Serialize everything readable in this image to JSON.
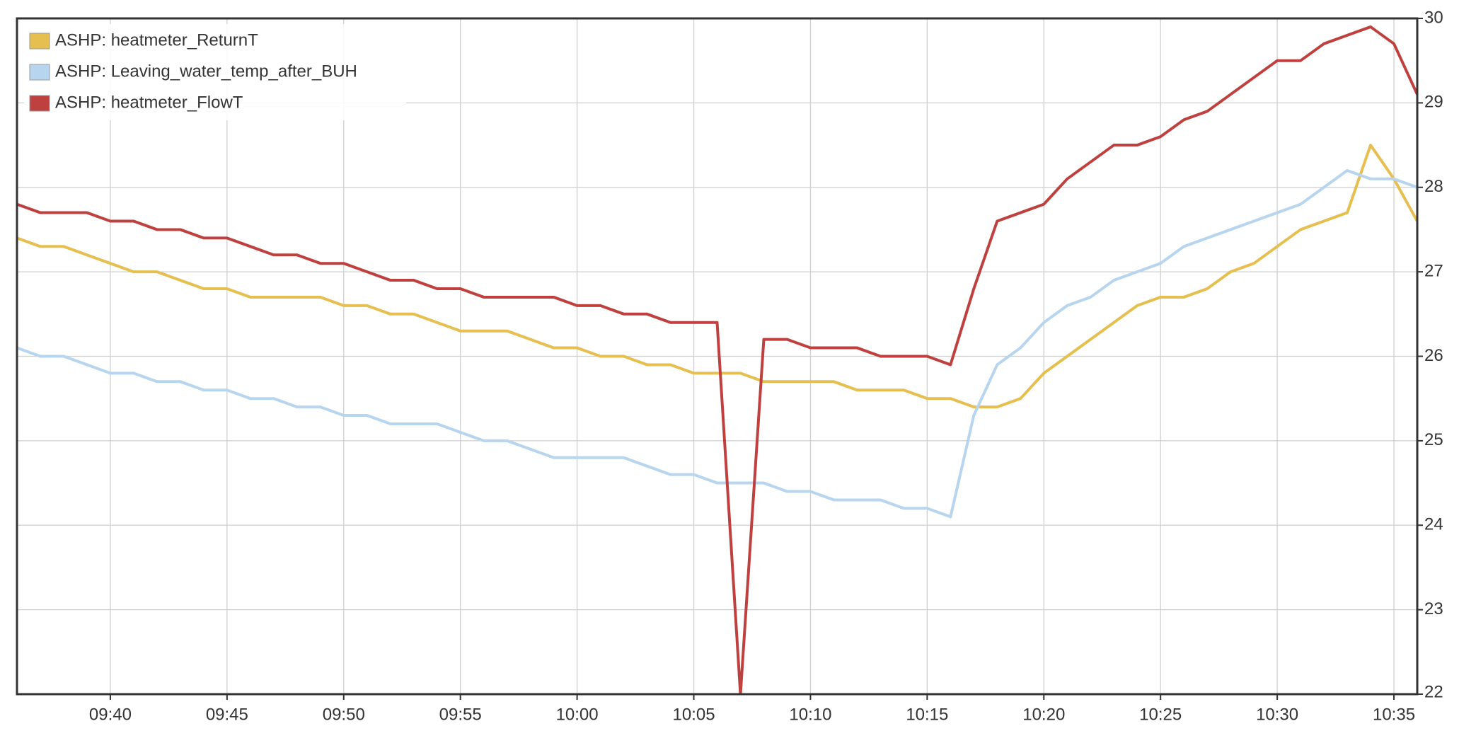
{
  "chart_data": {
    "type": "line",
    "x": [
      "09:36",
      "09:37",
      "09:38",
      "09:39",
      "09:40",
      "09:41",
      "09:42",
      "09:43",
      "09:44",
      "09:45",
      "09:46",
      "09:47",
      "09:48",
      "09:49",
      "09:50",
      "09:51",
      "09:52",
      "09:53",
      "09:54",
      "09:55",
      "09:56",
      "09:57",
      "09:58",
      "09:59",
      "10:00",
      "10:01",
      "10:02",
      "10:03",
      "10:04",
      "10:05",
      "10:06",
      "10:07",
      "10:08",
      "10:09",
      "10:10",
      "10:11",
      "10:12",
      "10:13",
      "10:14",
      "10:15",
      "10:16",
      "10:17",
      "10:18",
      "10:19",
      "10:20",
      "10:21",
      "10:22",
      "10:23",
      "10:24",
      "10:25",
      "10:26",
      "10:27",
      "10:28",
      "10:29",
      "10:30",
      "10:31",
      "10:32",
      "10:33",
      "10:34",
      "10:35",
      "10:36"
    ],
    "series": [
      {
        "name": "ASHP: heatmeter_ReturnT",
        "color": "#e5bf4f",
        "values": [
          27.4,
          27.3,
          27.3,
          27.2,
          27.1,
          27.0,
          27.0,
          26.9,
          26.8,
          26.8,
          26.7,
          26.7,
          26.7,
          26.7,
          26.6,
          26.6,
          26.5,
          26.5,
          26.4,
          26.3,
          26.3,
          26.3,
          26.2,
          26.1,
          26.1,
          26.0,
          26.0,
          25.9,
          25.9,
          25.8,
          25.8,
          25.8,
          25.7,
          25.7,
          25.7,
          25.7,
          25.6,
          25.6,
          25.6,
          25.5,
          25.5,
          25.4,
          25.4,
          25.5,
          25.8,
          26.0,
          26.2,
          26.4,
          26.6,
          26.7,
          26.7,
          26.8,
          27.0,
          27.1,
          27.3,
          27.5,
          27.6,
          27.7,
          28.5,
          28.1,
          27.6
        ]
      },
      {
        "name": "ASHP: Leaving_water_temp_after_BUH",
        "color": "#b8d5ef",
        "values": [
          26.1,
          26.0,
          26.0,
          25.9,
          25.8,
          25.8,
          25.7,
          25.7,
          25.6,
          25.6,
          25.5,
          25.5,
          25.4,
          25.4,
          25.3,
          25.3,
          25.2,
          25.2,
          25.2,
          25.1,
          25.0,
          25.0,
          24.9,
          24.8,
          24.8,
          24.8,
          24.8,
          24.7,
          24.6,
          24.6,
          24.5,
          24.5,
          24.5,
          24.4,
          24.4,
          24.3,
          24.3,
          24.3,
          24.2,
          24.2,
          24.1,
          25.3,
          25.9,
          26.1,
          26.4,
          26.6,
          26.7,
          26.9,
          27.0,
          27.1,
          27.3,
          27.4,
          27.5,
          27.6,
          27.7,
          27.8,
          28.0,
          28.2,
          28.1,
          28.1,
          28.0
        ]
      },
      {
        "name": "ASHP: heatmeter_FlowT",
        "color": "#bf413f",
        "values": [
          27.8,
          27.7,
          27.7,
          27.7,
          27.6,
          27.6,
          27.5,
          27.5,
          27.4,
          27.4,
          27.3,
          27.2,
          27.2,
          27.1,
          27.1,
          27.0,
          26.9,
          26.9,
          26.8,
          26.8,
          26.7,
          26.7,
          26.7,
          26.7,
          26.6,
          26.6,
          26.5,
          26.5,
          26.4,
          26.4,
          26.4,
          22,
          26.2,
          26.2,
          26.1,
          26.1,
          26.1,
          26.0,
          26.0,
          26.0,
          25.9,
          26.8,
          27.6,
          27.7,
          27.8,
          28.1,
          28.3,
          28.5,
          28.5,
          28.6,
          28.8,
          28.9,
          29.1,
          29.3,
          29.5,
          29.5,
          29.7,
          29.8,
          29.9,
          29.7,
          29.1
        ]
      }
    ],
    "xlim": [
      "09:36",
      "10:36"
    ],
    "xticks": [
      "09:40",
      "09:45",
      "09:50",
      "09:55",
      "10:00",
      "10:05",
      "10:10",
      "10:15",
      "10:20",
      "10:25",
      "10:30",
      "10:35"
    ],
    "ylim": [
      22,
      30
    ],
    "yticks": [
      22,
      23,
      24,
      25,
      26,
      27,
      28,
      29,
      30
    ],
    "grid": true,
    "legend": "top-left"
  }
}
